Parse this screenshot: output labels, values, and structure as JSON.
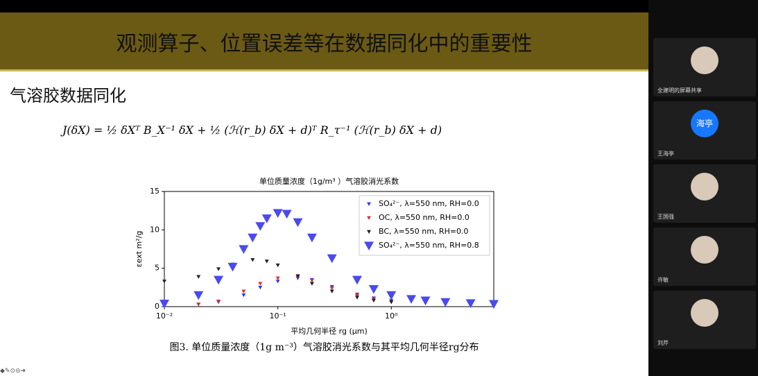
{
  "slide": {
    "title": "观测算子、位置误差等在数据同化中的重要性",
    "heading": "气溶胶数据同化",
    "formula": "J(δX) = ½ δXᵀ B_X⁻¹ δX + ½ (ℋ(r_b) δX + d)ᵀ R_τ⁻¹ (ℋ(r_b) δX + d)",
    "caption": "图3. 单位质量浓度（1g m⁻³）气溶胶消光系数与其平均几何半径rg分布"
  },
  "chart_data": {
    "type": "scatter",
    "title": "单位质量浓度（1g/m³ ）气溶胶消光系数",
    "xlabel": "平均几何半径 rg (μm)",
    "ylabel": "εext m²/g",
    "xscale": "log",
    "xlim": [
      0.01,
      8
    ],
    "ylim": [
      0,
      15
    ],
    "xticks": [
      {
        "value": 0.01,
        "label": "10⁻²"
      },
      {
        "value": 0.1,
        "label": "10⁻¹"
      },
      {
        "value": 1,
        "label": "10⁰"
      }
    ],
    "yticks": [
      0,
      5,
      10,
      15
    ],
    "legend": "upper right",
    "series": [
      {
        "name": "SO₄²⁻, λ=550 nm, RH=0.0",
        "color": "#3a3ae8",
        "marker_size": 3,
        "x": [
          0.01,
          0.02,
          0.03,
          0.05,
          0.07,
          0.1,
          0.15,
          0.2,
          0.3,
          0.5,
          0.7,
          1,
          2,
          5
        ],
        "values": [
          0.1,
          0.3,
          0.6,
          1.5,
          2.5,
          3.3,
          3.7,
          3.5,
          2.6,
          1.6,
          1.1,
          0.8,
          0.45,
          0.25
        ]
      },
      {
        "name": "OC,  λ=550 nm, RH=0.0",
        "color": "#e03030",
        "marker_size": 3,
        "x": [
          0.01,
          0.02,
          0.03,
          0.05,
          0.07,
          0.1,
          0.15,
          0.2,
          0.3,
          0.5,
          0.7,
          1
        ],
        "values": [
          0.1,
          0.3,
          0.7,
          2,
          3,
          3.7,
          3.9,
          3.4,
          2.4,
          1.4,
          0.9,
          0.6
        ]
      },
      {
        "name": "BC,  λ=550 nm, RH=0.0",
        "color": "#222222",
        "marker_size": 3,
        "x": [
          0.01,
          0.02,
          0.03,
          0.04,
          0.06,
          0.08,
          0.1,
          0.15,
          0.2,
          0.3,
          0.5,
          0.7,
          1
        ],
        "values": [
          3.3,
          3.9,
          4.9,
          5.5,
          6.1,
          5.9,
          5.4,
          4,
          3,
          2,
          1.2,
          0.8,
          0.6
        ]
      },
      {
        "name": "SO₄²⁻, λ=550 nm, RH=0.8",
        "color": "#4a4af0",
        "marker_size": 7,
        "x": [
          0.01,
          0.02,
          0.03,
          0.04,
          0.05,
          0.06,
          0.07,
          0.08,
          0.1,
          0.12,
          0.15,
          0.2,
          0.3,
          0.5,
          0.7,
          1,
          1.5,
          2,
          3,
          5,
          8
        ],
        "values": [
          0.4,
          1.5,
          3.5,
          5.2,
          7.5,
          9,
          10.5,
          11.5,
          12.2,
          12.1,
          11,
          9,
          6.3,
          3.5,
          2.3,
          1.5,
          1,
          0.8,
          0.6,
          0.45,
          0.35
        ]
      }
    ]
  },
  "sidebar": {
    "participants": [
      {
        "label": "全建明的屏幕共享"
      },
      {
        "avatar": "海亭",
        "label": "王海亭"
      },
      {
        "label": "王国强"
      },
      {
        "label": "许敏"
      },
      {
        "label": "刘芹"
      }
    ]
  }
}
